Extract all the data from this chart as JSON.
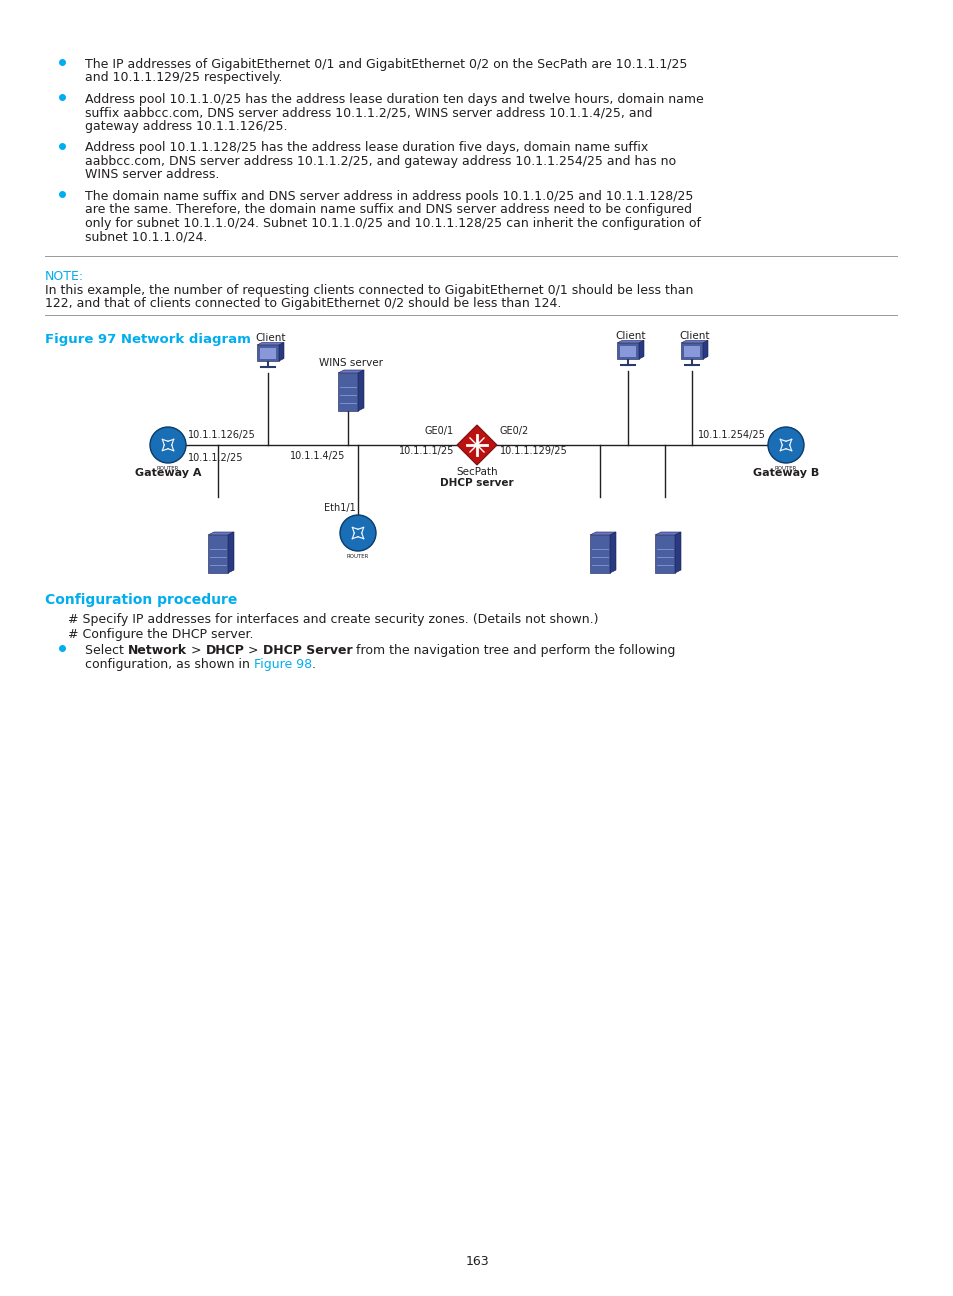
{
  "bg_color": "#ffffff",
  "text_color": "#231f20",
  "cyan_color": "#00aeef",
  "bullet_color": "#00aeef",
  "page_number": "163",
  "bullet_points": [
    "The IP addresses of GigabitEthernet 0/1 and GigabitEthernet 0/2 on the SecPath are 10.1.1.1/25\nand 10.1.1.129/25 respectively.",
    "Address pool 10.1.1.0/25 has the address lease duration ten days and twelve hours, domain name\nsuffix aabbcc.com, DNS server address 10.1.1.2/25, WINS server address 10.1.1.4/25, and\ngateway address 10.1.1.126/25.",
    "Address pool 10.1.1.128/25 has the address lease duration five days, domain name suffix\naabbcc.com, DNS server address 10.1.1.2/25, and gateway address 10.1.1.254/25 and has no\nWINS server address.",
    "The domain name suffix and DNS server address in address pools 10.1.1.0/25 and 10.1.1.128/25\nare the same. Therefore, the domain name suffix and DNS server address need to be configured\nonly for subnet 10.1.1.0/24. Subnet 10.1.1.0/25 and 10.1.1.128/25 can inherit the configuration of\nsubnet 10.1.1.0/24."
  ],
  "note_label": "NOTE:",
  "note_text": "In this example, the number of requesting clients connected to GigabitEthernet 0/1 should be less than\n122, and that of clients connected to GigabitEthernet 0/2 should be less than 124.",
  "figure_title": "Figure 97 Network diagram",
  "section_title": "Configuration procedure",
  "config_line1": "# Specify IP addresses for interfaces and create security zones. (Details not shown.)",
  "config_line2": "# Configure the DHCP server.",
  "config_bullet_pre": "Select ",
  "config_bullet_b1": "Network",
  "config_bullet_m1": " > ",
  "config_bullet_b2": "DHCP",
  "config_bullet_m2": " > ",
  "config_bullet_b3": "DHCP Server",
  "config_bullet_post": " from the navigation tree and perform the following",
  "config_bullet_line2a": "configuration, as shown in ",
  "config_bullet_line2b": "Figure 98",
  "config_bullet_line2c": ".",
  "router_color": "#1a6eb5",
  "router_edge": "#0a3a6a",
  "device_color": "#4a5fa0",
  "device_light": "#6878c8",
  "device_dark": "#2a3a80",
  "secpath_color": "#cc2222",
  "line_color": "#000000"
}
